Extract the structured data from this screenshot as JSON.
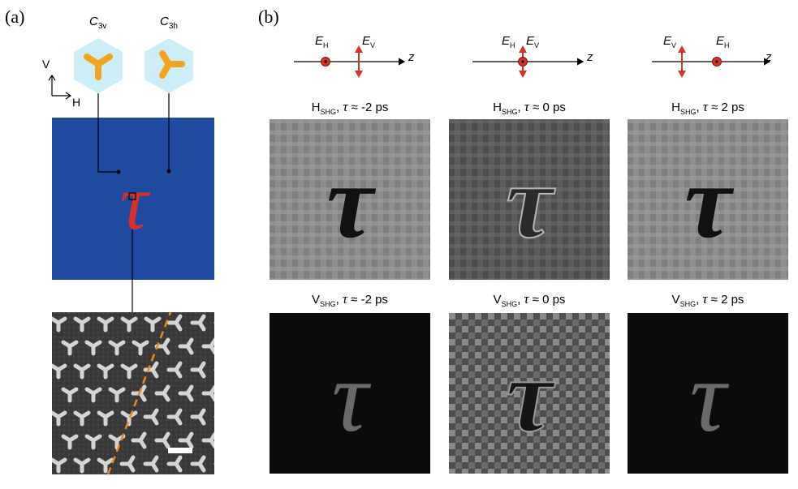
{
  "panel_a": {
    "label": "(a)",
    "symmetry_left": {
      "letter": "C",
      "sub": "3v"
    },
    "symmetry_right": {
      "letter": "C",
      "sub": "3h"
    },
    "axis_v": "V",
    "axis_h": "H",
    "sample_glyph": "τ"
  },
  "panel_b": {
    "label": "(b)",
    "diagrams": [
      {
        "first": {
          "letter": "E",
          "sub": "H"
        },
        "second": {
          "letter": "E",
          "sub": "V"
        },
        "axis": "z"
      },
      {
        "first": {
          "letter": "E",
          "sub": "H"
        },
        "second": {
          "letter": "E",
          "sub": "V"
        },
        "axis": "z"
      },
      {
        "first": {
          "letter": "E",
          "sub": "V"
        },
        "second": {
          "letter": "E",
          "sub": "H"
        },
        "axis": "z"
      }
    ],
    "captions": [
      {
        "pol": "H",
        "sub": "SHG",
        "sep": ", ",
        "tau": "τ",
        "rest": " ≈ -2 ps"
      },
      {
        "pol": "H",
        "sub": "SHG",
        "sep": ", ",
        "tau": "τ",
        "rest": " ≈ 0 ps"
      },
      {
        "pol": "H",
        "sub": "SHG",
        "sep": ", ",
        "tau": "τ",
        "rest": " ≈ 2 ps"
      },
      {
        "pol": "V",
        "sub": "SHG",
        "sep": ", ",
        "tau": "τ",
        "rest": " ≈ -2 ps"
      },
      {
        "pol": "V",
        "sub": "SHG",
        "sep": ", ",
        "tau": "τ",
        "rest": " ≈ 0 ps"
      },
      {
        "pol": "V",
        "sub": "SHG",
        "sep": ", ",
        "tau": "τ",
        "rest": " ≈ 2 ps"
      }
    ],
    "image_glyph": "τ"
  },
  "colors": {
    "substrate_blue": "#1f4aa0",
    "tau_red": "#d8312a",
    "hexagon_fill": "#cdeef7",
    "trimer_orange": "#f2a321",
    "arrow_red": "#d8312a",
    "dashed_orange": "#e8862a"
  }
}
